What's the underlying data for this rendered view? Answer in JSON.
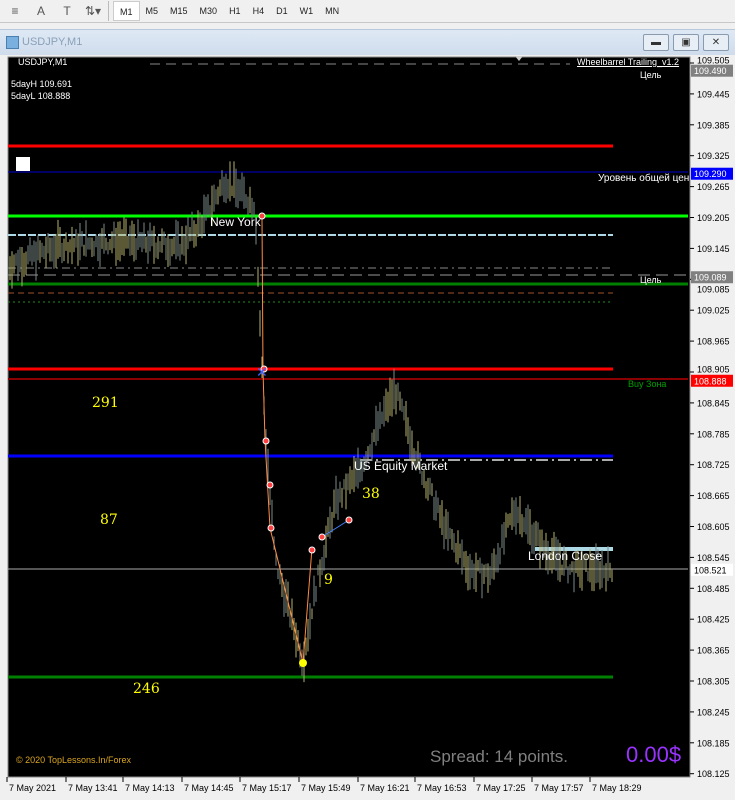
{
  "toolbar": {
    "icons": [
      "lines-icon",
      "text-icon",
      "text-label-icon",
      "arrows-icon"
    ],
    "timeframes": [
      "M1",
      "M5",
      "M15",
      "M30",
      "H1",
      "H4",
      "D1",
      "W1",
      "MN"
    ],
    "active": "M1"
  },
  "window": {
    "title": "USDJPY,M1"
  },
  "chart": {
    "symbol_label": "USDJPY,M1",
    "indicator_name": "Wheelbarrel Trailing_v1.2",
    "sday_high": "5dayH 109.691",
    "sday_low": "5dayL 108.888",
    "texts": {
      "new_york": "New York",
      "us_equity": "US Equity Market",
      "london_close": "London Close",
      "target1": "Цель",
      "target2": "Цель",
      "avg_level": "Уровень общей цен",
      "buy_zone": "Buy Зона"
    },
    "numbers": {
      "n291": "291",
      "n87": "87",
      "n246": "246",
      "n38": "38",
      "n9": "9"
    },
    "copyright": "© 2020 TopLessons.In/Forex",
    "spread": "Spread: 14 points.",
    "profit": "0.00$",
    "price_axis": [
      "109.505",
      "109.445",
      "109.385",
      "109.325",
      "109.265",
      "109.205",
      "109.145",
      "109.085",
      "109.025",
      "108.965",
      "108.905",
      "108.845",
      "108.785",
      "108.725",
      "108.665",
      "108.605",
      "108.545",
      "108.485",
      "108.425",
      "108.365",
      "108.305",
      "108.245",
      "108.185",
      "108.125"
    ],
    "price_tags": [
      {
        "value": "109.490",
        "color": "#808080"
      },
      {
        "value": "109.290",
        "color": "#0000ff"
      },
      {
        "value": "109.089",
        "color": "#808080"
      },
      {
        "value": "108.888",
        "color": "#ff0000"
      },
      {
        "value": "108.521",
        "color": "#ffffff"
      }
    ],
    "time_axis": [
      "7 May 2021",
      "7 May 13:41",
      "7 May 14:13",
      "7 May 14:45",
      "7 May 15:17",
      "7 May 15:49",
      "7 May 16:21",
      "7 May 16:53",
      "7 May 17:25",
      "7 May 17:57",
      "7 May 18:29"
    ],
    "colors": {
      "bg": "#000000",
      "bars": "#b5b06a",
      "red": "#ff0000",
      "green": "#00ff00",
      "blue": "#0000ff",
      "yellow": "#ffff00",
      "profit": "#9933ff"
    }
  }
}
